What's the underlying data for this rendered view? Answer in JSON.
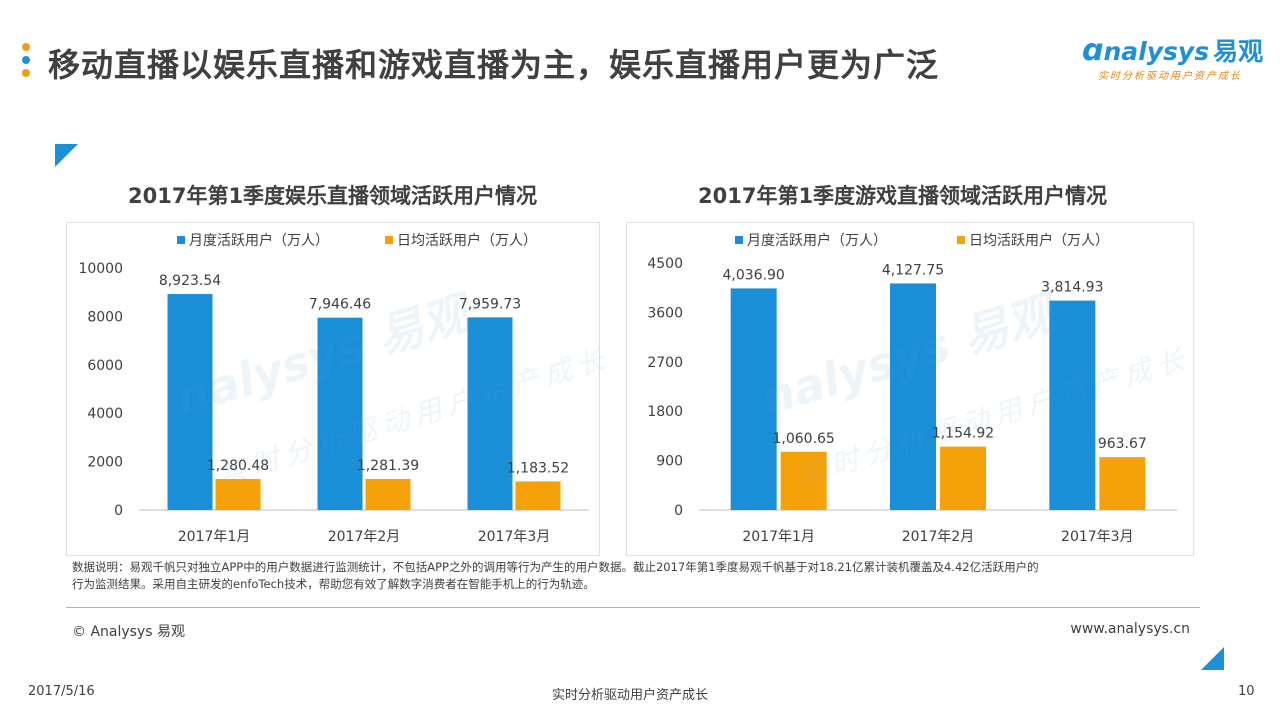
{
  "header": {
    "title": "移动直播以娱乐直播和游戏直播为主，娱乐直播用户更为广泛",
    "dot_colors": [
      "#f39c12",
      "#1e90d8",
      "#f39c12"
    ]
  },
  "logo": {
    "brand": "nalysys",
    "cn": "易观",
    "tagline": "实时分析驱动用户资产成长"
  },
  "watermark": {
    "brand": "nalysys 易观",
    "tagline": "实时分析驱动用户资产成长"
  },
  "colors": {
    "monthly": "#1a8fd8",
    "daily": "#f5a20a",
    "accent": "#1e90d8"
  },
  "chart_data": [
    {
      "type": "bar",
      "title": "2017年第1季度娱乐直播领域活跃用户情况",
      "categories": [
        "2017年1月",
        "2017年2月",
        "2017年3月"
      ],
      "series": [
        {
          "name": "月度活跃用户（万人）",
          "values": [
            8923.54,
            7946.46,
            7959.73
          ],
          "labels": [
            "8,923.54",
            "7,946.46",
            "7,959.73"
          ]
        },
        {
          "name": "日均活跃用户（万人）",
          "values": [
            1280.48,
            1281.39,
            1183.52
          ],
          "labels": [
            "1,280.48",
            "1,281.39",
            "1,183.52"
          ]
        }
      ],
      "yticks": [
        0,
        2000,
        4000,
        6000,
        8000,
        10000
      ],
      "ylim": [
        0,
        10000
      ],
      "legend": "top"
    },
    {
      "type": "bar",
      "title": "2017年第1季度游戏直播领域活跃用户情况",
      "categories": [
        "2017年1月",
        "2017年2月",
        "2017年3月"
      ],
      "series": [
        {
          "name": "月度活跃用户（万人）",
          "values": [
            4036.9,
            4127.75,
            3814.93
          ],
          "labels": [
            "4,036.90",
            "4,127.75",
            "3,814.93"
          ]
        },
        {
          "name": "日均活跃用户（万人）",
          "values": [
            1060.65,
            1154.92,
            963.67
          ],
          "labels": [
            "1,060.65",
            "1,154.92",
            "963.67"
          ]
        }
      ],
      "yticks": [
        0,
        900,
        1800,
        2700,
        3600,
        4500
      ],
      "ylim": [
        0,
        4500
      ],
      "legend": "top"
    }
  ],
  "note": {
    "line1": "数据说明：易观千帆只对独立APP中的用户数据进行监测统计，不包括APP之外的调用等行为产生的用户数据。截止2017年第1季度易观千帆基于对18.21亿累计装机覆盖及4.42亿活跃用户的",
    "line2": "行为监测结果。采用自主研发的enfoTech技术，帮助您有效了解数字消费者在智能手机上的行为轨迹。"
  },
  "footer": {
    "copyright": "© Analysys 易观",
    "website": "www.analysys.cn",
    "date": "2017/5/16",
    "slogan": "实时分析驱动用户资产成长",
    "page": "10"
  }
}
